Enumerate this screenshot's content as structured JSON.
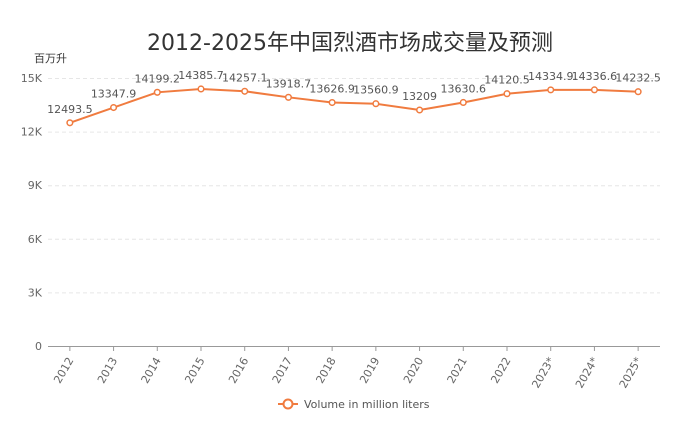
{
  "chart_data": {
    "type": "line",
    "title": "2012-2025年中国烈酒市场成交量及预测",
    "unit_label": "百万升",
    "categories": [
      "2012",
      "2013",
      "2014",
      "2015",
      "2016",
      "2017",
      "2018",
      "2019",
      "2020",
      "2021",
      "2022",
      "2023*",
      "2024*",
      "2025*"
    ],
    "series": [
      {
        "name": "Volume in million liters",
        "values": [
          12493.5,
          13347.9,
          14199.2,
          14385.7,
          14257.1,
          13918.7,
          13626.9,
          13560.9,
          13209,
          13630.6,
          14120.5,
          14334.9,
          14336.6,
          14232.5
        ],
        "value_labels": [
          "12493.5",
          "13347.9",
          "14199.2",
          "14385.7",
          "14257.1",
          "13918.7",
          "13626.9",
          "13560.9",
          "13209",
          "13630.6",
          "14120.5",
          "14334.9",
          "14336.6",
          "14232.5"
        ],
        "color": "#f07b3f"
      }
    ],
    "ylim": [
      0,
      15000
    ],
    "yticks": [
      0,
      3000,
      6000,
      9000,
      12000,
      15000
    ],
    "ytick_labels": [
      "0",
      "3K",
      "6K",
      "9K",
      "12K",
      "15K"
    ],
    "grid": true,
    "legend_position": "bottom-center"
  }
}
